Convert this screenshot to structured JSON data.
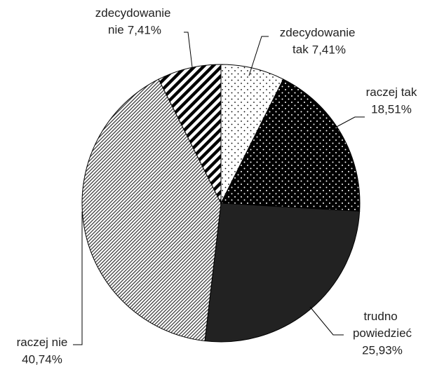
{
  "chart_data": {
    "type": "pie",
    "categories": [
      "zdecydowanie tak",
      "raczej tak",
      "trudno powiedzieć",
      "raczej nie",
      "zdecydowanie nie"
    ],
    "values": [
      7.41,
      18.51,
      25.93,
      40.74,
      7.41
    ],
    "value_labels": [
      "7,41%",
      "18,51%",
      "25,93%",
      "40,74%",
      "7,41%"
    ]
  }
}
